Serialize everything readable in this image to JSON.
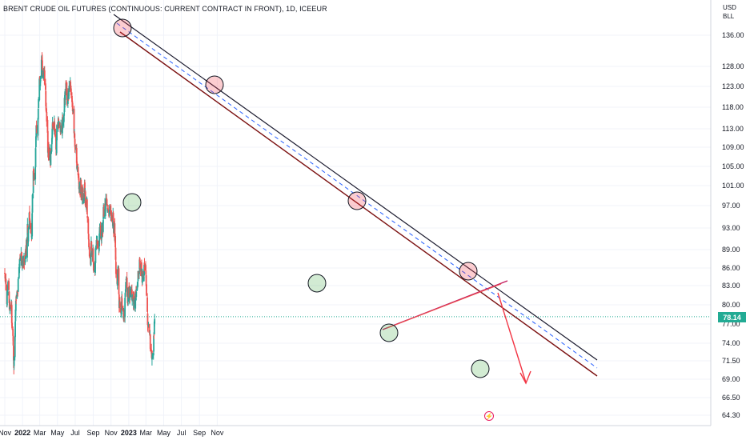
{
  "title": "BRENT CRUDE OIL FUTURES (CONTINUOUS: CURRENT CONTRACT IN FRONT), 1D, ICEEUR",
  "currency_line1": "USD",
  "currency_line2": "BLL",
  "last_price_label": "78.14",
  "colors": {
    "up": "#26a69a",
    "down": "#ef5350",
    "channel_upper": "#1a1a2e",
    "channel_lower": "#7b1010",
    "midline": "#2962ff",
    "arrow": "#f23645",
    "trendline": "#c2185b",
    "last_price_line": "#22ab94"
  },
  "chart_data": {
    "type": "candlestick",
    "instrument": "BRENT CRUDE OIL FUTURES (CONTINUOUS: CURRENT CONTRACT IN FRONT), 1D, ICEEUR",
    "x_ticks": [
      "Nov",
      "2022",
      "Mar",
      "May",
      "Jul",
      "Sep",
      "Nov",
      "2023",
      "Mar",
      "May",
      "Jul",
      "Sep",
      "Nov"
    ],
    "y_ticks": [
      64.3,
      66.5,
      69.0,
      71.5,
      74.0,
      77.0,
      80.0,
      83.0,
      86.0,
      89.0,
      93.0,
      97.0,
      101.0,
      105.0,
      109.0,
      113.0,
      118.0,
      123.0,
      128.0,
      136.0
    ],
    "y_tick_labels": [
      "64.30",
      "66.50",
      "69.00",
      "71.50",
      "74.00",
      "77.00",
      "80.00",
      "83.00",
      "86.00",
      "89.00",
      "93.00",
      "97.00",
      "101.00",
      "105.00",
      "109.00",
      "113.00",
      "118.00",
      "123.00",
      "128.00",
      "136.00"
    ],
    "last_price": 78.14,
    "ylim": [
      63.5,
      140
    ],
    "date_range": [
      "2021-11-01",
      "2023-11-30"
    ],
    "closes_monthly": [
      {
        "date": "2021-11-01",
        "close": 85.0
      },
      {
        "date": "2021-12-01",
        "close": 73.0
      },
      {
        "date": "2022-01-01",
        "close": 88.0
      },
      {
        "date": "2022-02-01",
        "close": 95.5
      },
      {
        "date": "2022-03-07",
        "close": 127.0
      },
      {
        "date": "2022-04-01",
        "close": 104.0
      },
      {
        "date": "2022-05-01",
        "close": 112.0
      },
      {
        "date": "2022-06-08",
        "close": 123.5
      },
      {
        "date": "2022-07-01",
        "close": 104.0
      },
      {
        "date": "2022-08-01",
        "close": 100.0
      },
      {
        "date": "2022-09-01",
        "close": 88.0
      },
      {
        "date": "2022-10-01",
        "close": 95.0
      },
      {
        "date": "2022-11-07",
        "close": 98.0
      },
      {
        "date": "2022-12-01",
        "close": 80.0
      },
      {
        "date": "2023-01-01",
        "close": 84.0
      },
      {
        "date": "2023-02-01",
        "close": 83.5
      },
      {
        "date": "2023-03-01",
        "close": 85.5
      },
      {
        "date": "2023-03-20",
        "close": 73.0
      },
      {
        "date": "2023-04-01",
        "close": 78.14
      }
    ],
    "annotations": {
      "channel": "descending parallel channel from March 2022 high through March 2023",
      "resistance_touches": 4,
      "support_touches": 5,
      "forecast": "downward arrow"
    }
  }
}
